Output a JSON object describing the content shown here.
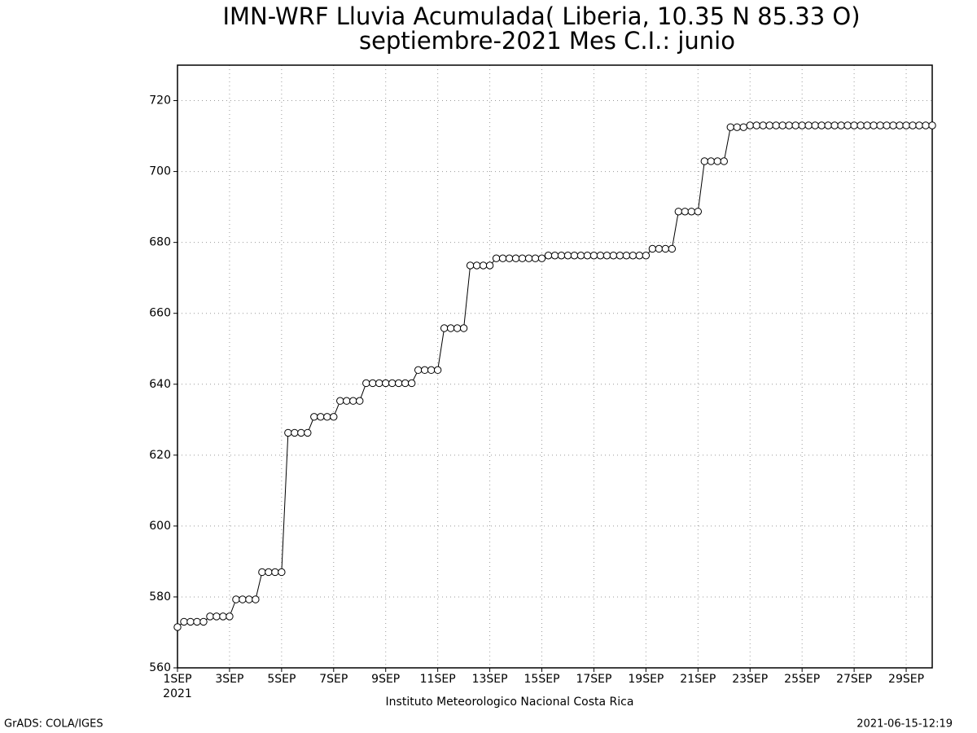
{
  "chart_data": {
    "type": "line",
    "title": "IMN-WRF  Lluvia Acumulada( Liberia, 10.35  N 85.33  O)",
    "subtitle": "septiembre-2021 Mes C.I.: junio",
    "x_year_label": "2021",
    "footer": "Instituto Meteorologico Nacional Costa Rica",
    "credit": "GrADS: COLA/IGES",
    "timestamp": "2021-06-15-12:19",
    "categories": [
      "1SEP",
      null,
      null,
      null,
      null,
      null,
      null,
      null,
      "3SEP",
      null,
      null,
      null,
      null,
      null,
      null,
      null,
      "5SEP",
      null,
      null,
      null,
      null,
      null,
      null,
      null,
      "7SEP",
      null,
      null,
      null,
      null,
      null,
      null,
      null,
      "9SEP",
      null,
      null,
      null,
      null,
      null,
      null,
      null,
      "11SEP",
      null,
      null,
      null,
      null,
      null,
      null,
      null,
      "13SEP",
      null,
      null,
      null,
      null,
      null,
      null,
      null,
      "15SEP",
      null,
      null,
      null,
      null,
      null,
      null,
      null,
      "17SEP",
      null,
      null,
      null,
      null,
      null,
      null,
      null,
      "19SEP",
      null,
      null,
      null,
      null,
      null,
      null,
      null,
      "21SEP",
      null,
      null,
      null,
      null,
      null,
      null,
      null,
      "23SEP",
      null,
      null,
      null,
      null,
      null,
      null,
      null,
      "25SEP",
      null,
      null,
      null,
      null,
      null,
      null,
      null,
      "27SEP",
      null,
      null,
      null,
      null,
      null,
      null,
      null,
      "29SEP",
      null,
      null,
      null,
      null
    ],
    "values": [
      571.5,
      573,
      573,
      573,
      573,
      574.5,
      574.5,
      574.5,
      574.5,
      579.3,
      579.3,
      579.3,
      579.3,
      587,
      587,
      587,
      587,
      626.3,
      626.3,
      626.3,
      626.3,
      630.8,
      630.8,
      630.8,
      630.8,
      635.3,
      635.3,
      635.3,
      635.3,
      640.3,
      640.3,
      640.3,
      640.3,
      640.3,
      640.3,
      640.3,
      640.3,
      644,
      644,
      644,
      644,
      655.8,
      655.8,
      655.8,
      655.8,
      673.5,
      673.5,
      673.5,
      673.5,
      675.5,
      675.5,
      675.5,
      675.5,
      675.5,
      675.5,
      675.5,
      675.5,
      676.3,
      676.3,
      676.3,
      676.3,
      676.3,
      676.3,
      676.3,
      676.3,
      676.3,
      676.3,
      676.3,
      676.3,
      676.3,
      676.3,
      676.3,
      676.3,
      678.2,
      678.2,
      678.2,
      678.2,
      688.7,
      688.7,
      688.7,
      688.7,
      702.9,
      702.9,
      702.9,
      702.9,
      712.5,
      712.5,
      712.5,
      713,
      713,
      713,
      713,
      713,
      713,
      713,
      713,
      713,
      713,
      713,
      713,
      713,
      713,
      713,
      713,
      713,
      713,
      713,
      713,
      713,
      713,
      713,
      713,
      713,
      713,
      713,
      713,
      713
    ],
    "line_color": "#000000",
    "marker_fill": "#ffffff",
    "ylim": [
      560,
      730
    ],
    "yticks": [
      560,
      580,
      600,
      620,
      640,
      660,
      680,
      700,
      720
    ],
    "grid": true
  }
}
